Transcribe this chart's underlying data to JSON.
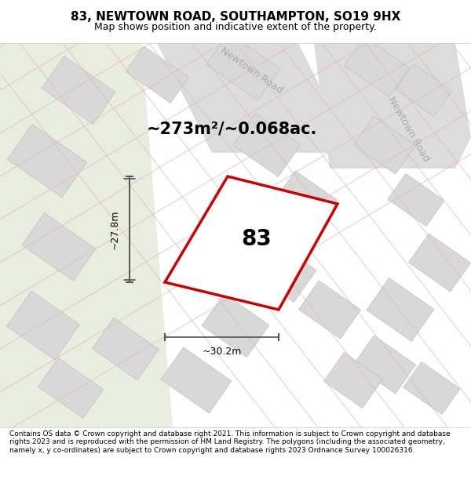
{
  "title": "83, NEWTOWN ROAD, SOUTHAMPTON, SO19 9HX",
  "subtitle": "Map shows position and indicative extent of the property.",
  "footer": "Contains OS data © Crown copyright and database right 2021. This information is subject to Crown copyright and database rights 2023 and is reproduced with the permission of HM Land Registry. The polygons (including the associated geometry, namely x, y co-ordinates) are subject to Crown copyright and database rights 2023 Ordnance Survey 100026316.",
  "bg_color": "#f0f0ec",
  "map_bg": "#f5f5f0",
  "road_color_light": "#e8b8b8",
  "building_color": "#d8d8d8",
  "building_edge": "#c0c0c0",
  "highlight_color": "#cc0000",
  "highlight_fill": "#ffffff",
  "road_label_color": "#aaaaaa",
  "area_text": "~273m²/~0.068ac.",
  "number_label": "83",
  "dim_h": "~27.8m",
  "dim_w": "~30.2m",
  "figsize": [
    6.0,
    6.25
  ],
  "dpi": 100
}
